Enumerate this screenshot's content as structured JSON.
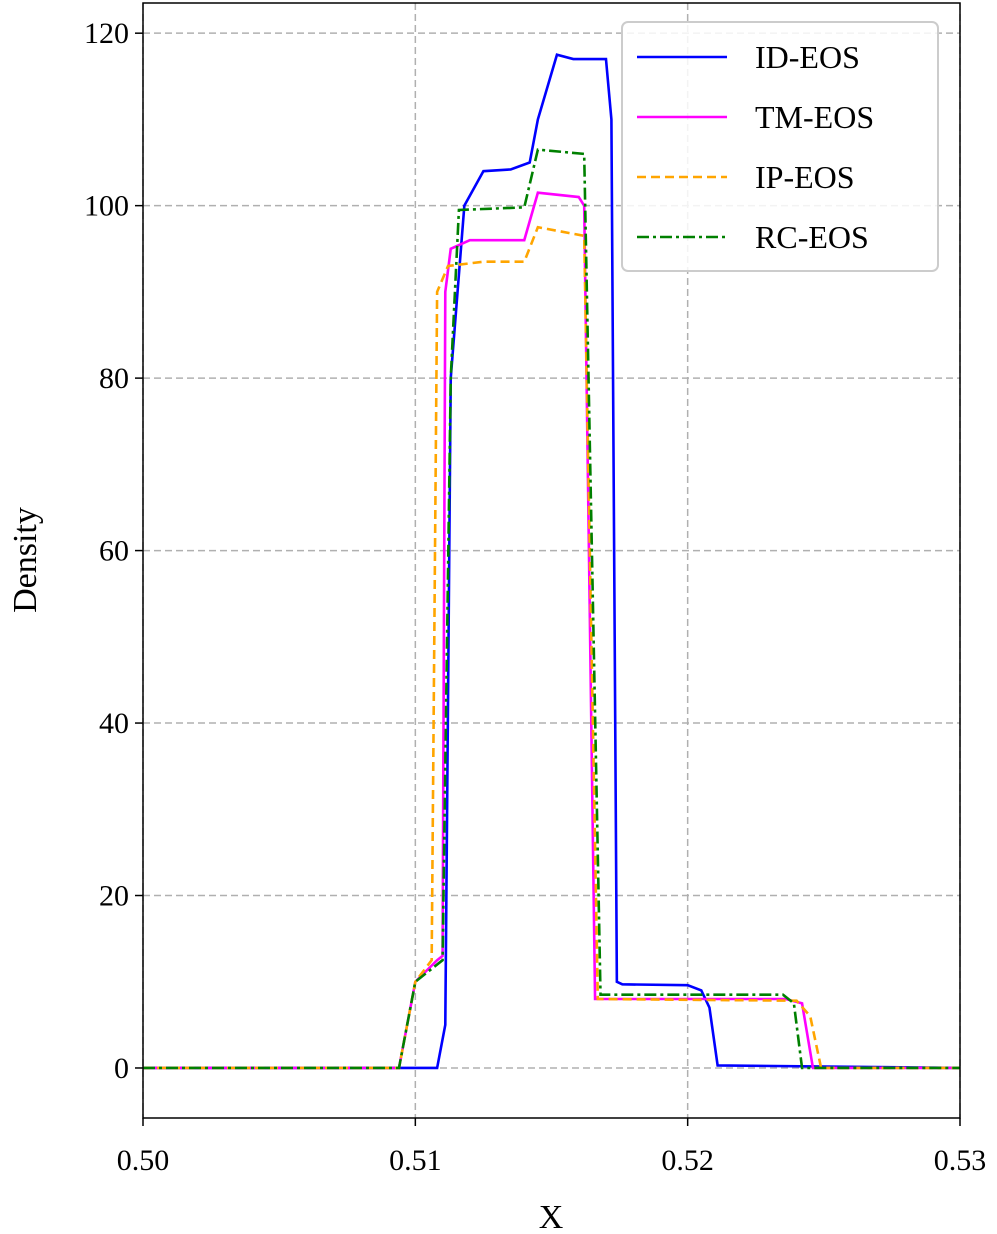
{
  "chart_data": {
    "type": "line",
    "xlabel": "X",
    "ylabel": "Density",
    "xlim": [
      0.5,
      0.53
    ],
    "ylim": [
      -5.8,
      123.5
    ],
    "xticks": [
      {
        "value": 0.5,
        "label": "0.50"
      },
      0.51,
      0.52,
      0.53
    ],
    "yticks": [
      0,
      20,
      40,
      60,
      80,
      100,
      120
    ],
    "grid": true,
    "legend": "upper right",
    "series": [
      {
        "name": "ID-EOS",
        "color": "#0000ff",
        "style": "solid",
        "x": [
          0.5,
          0.5108,
          0.5111,
          0.5113,
          0.5118,
          0.5125,
          0.5135,
          0.5142,
          0.5145,
          0.5152,
          0.5158,
          0.517,
          0.5172,
          0.5174,
          0.5176,
          0.52,
          0.5205,
          0.5208,
          0.5211,
          0.53
        ],
        "values": [
          0,
          0,
          5,
          80,
          100,
          104,
          104.2,
          105,
          110,
          117.5,
          117,
          117,
          110,
          10,
          9.7,
          9.6,
          9,
          7,
          0.3,
          0
        ]
      },
      {
        "name": "TM-EOS",
        "color": "#ff00ff",
        "style": "solid",
        "x": [
          0.5,
          0.5094,
          0.51,
          0.5108,
          0.511,
          0.5111,
          0.5113,
          0.512,
          0.514,
          0.5145,
          0.516,
          0.5162,
          0.5166,
          0.5236,
          0.5242,
          0.5246,
          0.53
        ],
        "values": [
          0,
          0,
          10,
          12.5,
          13,
          90,
          95,
          96,
          96,
          101.5,
          101,
          100,
          8,
          8,
          7.5,
          0,
          0
        ]
      },
      {
        "name": "IP-EOS",
        "color": "#ffa500",
        "style": "dashed",
        "x": [
          0.5,
          0.5094,
          0.51,
          0.5106,
          0.5108,
          0.5112,
          0.5125,
          0.514,
          0.5145,
          0.5162,
          0.5167,
          0.524,
          0.5245,
          0.5249,
          0.53
        ],
        "values": [
          0,
          0,
          10,
          12.5,
          90,
          93,
          93.5,
          93.5,
          97.5,
          96.5,
          8,
          7.8,
          6,
          0,
          0
        ]
      },
      {
        "name": "RC-EOS",
        "color": "#008000",
        "style": "dashdot",
        "x": [
          0.5,
          0.5094,
          0.51,
          0.511,
          0.5113,
          0.5116,
          0.514,
          0.5145,
          0.5162,
          0.5168,
          0.5235,
          0.5239,
          0.5242,
          0.53
        ],
        "values": [
          0,
          0,
          10,
          12.5,
          80,
          99.5,
          99.8,
          106.5,
          106,
          8.5,
          8.5,
          7.5,
          0,
          0
        ]
      }
    ]
  }
}
